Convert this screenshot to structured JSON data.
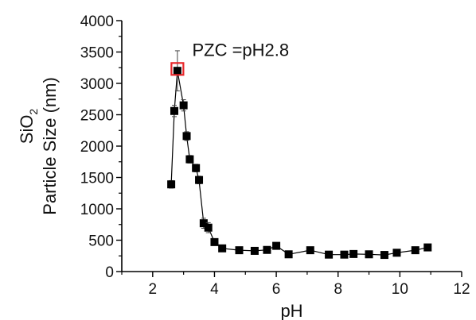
{
  "chart_data": {
    "type": "scatter",
    "title": "",
    "xlabel": "pH",
    "ylabel_line1": "SiO",
    "ylabel_line1_subscript": "2",
    "ylabel_line2": "Particle Size (nm)",
    "xlim": [
      1,
      12
    ],
    "ylim": [
      0,
      4000
    ],
    "xticks": [
      2,
      4,
      6,
      8,
      10,
      12
    ],
    "yticks": [
      0,
      500,
      1000,
      1500,
      2000,
      2500,
      3000,
      3500,
      4000
    ],
    "xtick_labels": [
      "2",
      "4",
      "6",
      "8",
      "10",
      "12"
    ],
    "ytick_labels": [
      "0",
      "500",
      "1000",
      "1500",
      "2000",
      "2500",
      "3000",
      "3500",
      "4000"
    ],
    "grid": false,
    "series": [
      {
        "marker": "square",
        "color": "#000000",
        "line": true,
        "points": [
          {
            "x": 2.6,
            "y": 1390,
            "err": 60
          },
          {
            "x": 2.7,
            "y": 2560,
            "err": 90
          },
          {
            "x": 2.8,
            "y": 3200,
            "err": 320
          },
          {
            "x": 3.0,
            "y": 2650,
            "err": 90
          },
          {
            "x": 3.1,
            "y": 2160,
            "err": 70
          },
          {
            "x": 3.2,
            "y": 1790,
            "err": 60
          },
          {
            "x": 3.4,
            "y": 1650,
            "err": 60
          },
          {
            "x": 3.5,
            "y": 1460,
            "err": 60
          },
          {
            "x": 3.65,
            "y": 770,
            "err": 80
          },
          {
            "x": 3.8,
            "y": 700,
            "err": 80
          },
          {
            "x": 4.0,
            "y": 470,
            "err": 50
          },
          {
            "x": 4.25,
            "y": 370,
            "err": 40
          },
          {
            "x": 4.8,
            "y": 340,
            "err": 30
          },
          {
            "x": 5.3,
            "y": 330,
            "err": 30
          },
          {
            "x": 5.7,
            "y": 345,
            "err": 30
          },
          {
            "x": 6.0,
            "y": 410,
            "err": 30
          },
          {
            "x": 6.4,
            "y": 275,
            "err": 30
          },
          {
            "x": 7.1,
            "y": 340,
            "err": 30
          },
          {
            "x": 7.7,
            "y": 270,
            "err": 30
          },
          {
            "x": 8.2,
            "y": 270,
            "err": 30
          },
          {
            "x": 8.5,
            "y": 280,
            "err": 30
          },
          {
            "x": 9.0,
            "y": 275,
            "err": 30
          },
          {
            "x": 9.5,
            "y": 265,
            "err": 30
          },
          {
            "x": 9.9,
            "y": 300,
            "err": 30
          },
          {
            "x": 10.5,
            "y": 340,
            "err": 30
          },
          {
            "x": 10.9,
            "y": 385,
            "err": 30
          }
        ]
      }
    ],
    "highlight": {
      "x": 2.8,
      "y": 3230,
      "color": "#e8262a"
    },
    "annotation": {
      "text": "PZC =pH2.8",
      "x": 4.0,
      "y": 3500
    }
  }
}
